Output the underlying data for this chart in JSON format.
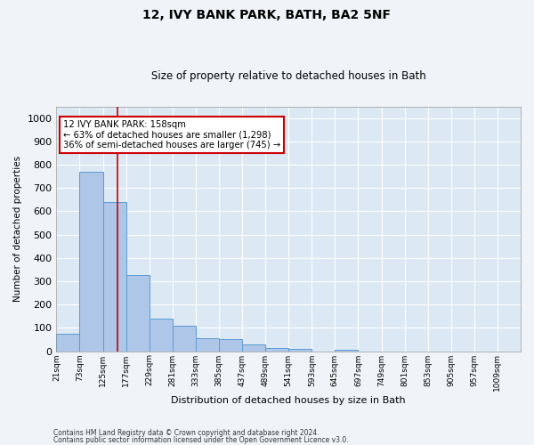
{
  "title": "12, IVY BANK PARK, BATH, BA2 5NF",
  "subtitle": "Size of property relative to detached houses in Bath",
  "xlabel": "Distribution of detached houses by size in Bath",
  "ylabel": "Number of detached properties",
  "annotation_title": "12 IVY BANK PARK: 158sqm",
  "annotation_line1": "← 63% of detached houses are smaller (1,298)",
  "annotation_line2": "36% of semi-detached houses are larger (745) →",
  "footer1": "Contains HM Land Registry data © Crown copyright and database right 2024.",
  "footer2": "Contains public sector information licensed under the Open Government Licence v3.0.",
  "bar_edges": [
    21,
    73,
    125,
    177,
    229,
    281,
    333,
    385,
    437,
    489,
    541,
    593,
    645,
    697,
    749,
    801,
    853,
    905,
    957,
    1009,
    1061
  ],
  "bar_values": [
    75,
    770,
    640,
    325,
    140,
    110,
    55,
    50,
    30,
    15,
    10,
    0,
    5,
    0,
    0,
    0,
    0,
    0,
    0,
    0
  ],
  "bar_color": "#aec6e8",
  "bar_edgecolor": "#5b9bd5",
  "vline_x": 158,
  "vline_color": "#cc0000",
  "ylim": [
    0,
    1050
  ],
  "yticks": [
    0,
    100,
    200,
    300,
    400,
    500,
    600,
    700,
    800,
    900,
    1000
  ],
  "annotation_box_color": "#cc0000",
  "background_color": "#dce9f5",
  "figure_background": "#f0f4f8",
  "grid_color": "#ffffff"
}
